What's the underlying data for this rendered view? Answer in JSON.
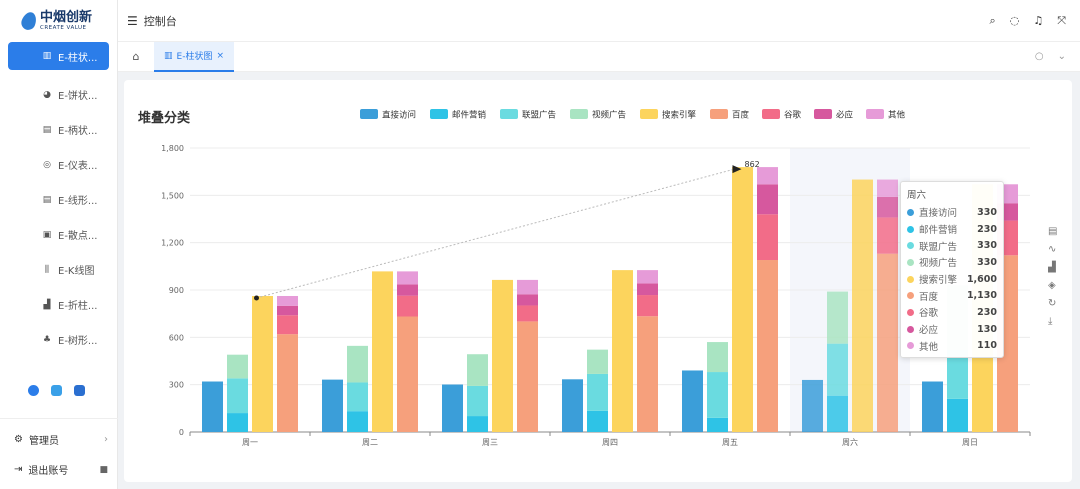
{
  "logo": {
    "cn": "中烟创新",
    "en": "CREATE VALUE"
  },
  "sidebar": {
    "items": [
      {
        "label": "E-柱状...",
        "icon": "bar-chart-icon",
        "glyph": "▥",
        "active": true
      },
      {
        "label": "E-饼状...",
        "icon": "pie-chart-icon",
        "glyph": "◕",
        "active": false
      },
      {
        "label": "E-柄状...",
        "icon": "list-icon",
        "glyph": "▤",
        "active": false
      },
      {
        "label": "E-仪表...",
        "icon": "gauge-icon",
        "glyph": "◎",
        "active": false
      },
      {
        "label": "E-线形...",
        "icon": "line-chart-icon",
        "glyph": "▤",
        "active": false
      },
      {
        "label": "E-散点...",
        "icon": "scatter-icon",
        "glyph": "▣",
        "active": false
      },
      {
        "label": "E-K线图",
        "icon": "candlestick-icon",
        "glyph": "⫼",
        "active": false
      },
      {
        "label": "E-折柱...",
        "icon": "combo-chart-icon",
        "glyph": "▟",
        "active": false
      },
      {
        "label": "E-树形...",
        "icon": "tree-icon",
        "glyph": "♣",
        "active": false
      }
    ],
    "admin_label": "管理员",
    "logout_label": "退出账号"
  },
  "header": {
    "title": "控制台"
  },
  "tabs": [
    {
      "label": "E-柱状图",
      "close": "×"
    }
  ],
  "chart_title": "堆叠分类",
  "chart_data": {
    "type": "bar",
    "title": "堆叠分类",
    "categories": [
      "周一",
      "周二",
      "周三",
      "周四",
      "周五",
      "周六",
      "周日"
    ],
    "ylim": [
      0,
      1800
    ],
    "yticks": [
      "0",
      "300",
      "600",
      "900",
      "1,200",
      "1,500",
      "1,800"
    ],
    "legend_position": "top-center",
    "series": [
      {
        "name": "直接访问",
        "color": "#3b9ed9",
        "stack": "a",
        "values": [
          320,
          332,
          301,
          334,
          390,
          330,
          320
        ]
      },
      {
        "name": "邮件营销",
        "color": "#2ec3e6",
        "stack": "b",
        "values": [
          120,
          132,
          101,
          134,
          90,
          230,
          210
        ]
      },
      {
        "name": "联盟广告",
        "color": "#6adbe0",
        "stack": "b",
        "values": [
          220,
          182,
          191,
          234,
          290,
          330,
          310
        ]
      },
      {
        "name": "视频广告",
        "color": "#a9e4c2",
        "stack": "b",
        "values": [
          150,
          232,
          201,
          154,
          190,
          330,
          410
        ]
      },
      {
        "name": "搜索引擎",
        "color": "#fcd45d",
        "stack": "c",
        "values": [
          862,
          1018,
          964,
          1026,
          1679,
          1600,
          1570
        ]
      },
      {
        "name": "百度",
        "color": "#f6a07c",
        "stack": "d",
        "values": [
          620,
          732,
          701,
          734,
          1090,
          1130,
          1120
        ]
      },
      {
        "name": "谷歌",
        "color": "#f26c88",
        "stack": "d",
        "values": [
          120,
          132,
          101,
          134,
          290,
          230,
          220
        ]
      },
      {
        "name": "必应",
        "color": "#d6589e",
        "stack": "d",
        "values": [
          60,
          72,
          71,
          74,
          190,
          130,
          110
        ]
      },
      {
        "name": "其他",
        "color": "#e69bd8",
        "stack": "d",
        "values": [
          62,
          82,
          91,
          84,
          109,
          110,
          120
        ]
      }
    ],
    "markline": {
      "label": "862"
    }
  },
  "tooltip": {
    "title": "周六",
    "rows": [
      {
        "name": "直接访问",
        "value": "330",
        "color": "#3b9ed9"
      },
      {
        "name": "邮件营销",
        "value": "230",
        "color": "#2ec3e6"
      },
      {
        "name": "联盟广告",
        "value": "330",
        "color": "#6adbe0"
      },
      {
        "name": "视频广告",
        "value": "330",
        "color": "#a9e4c2"
      },
      {
        "name": "搜索引擎",
        "value": "1,600",
        "color": "#fcd45d"
      },
      {
        "name": "百度",
        "value": "1,130",
        "color": "#f6a07c"
      },
      {
        "name": "谷歌",
        "value": "230",
        "color": "#f26c88"
      },
      {
        "name": "必应",
        "value": "130",
        "color": "#d6589e"
      },
      {
        "name": "其他",
        "value": "110",
        "color": "#e69bd8"
      }
    ]
  }
}
